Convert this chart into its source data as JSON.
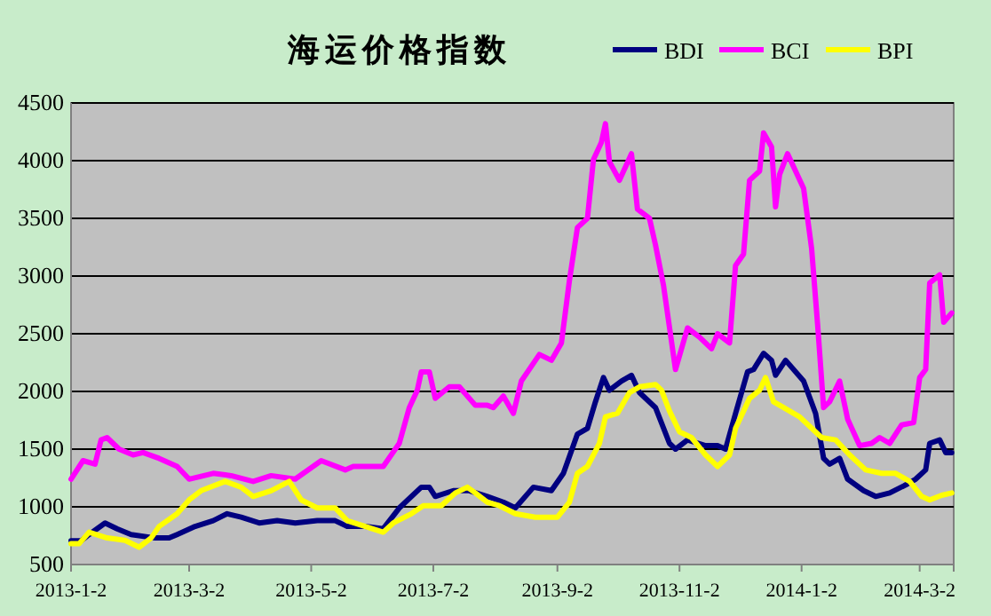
{
  "chart_data": {
    "type": "line",
    "title": "海运价格指数",
    "legend": "top right",
    "grid": "y",
    "marker": "none",
    "line_style": "solid",
    "xlim": [
      "2013-01-02",
      "2014-03-19"
    ],
    "xticks": [
      {
        "value": "2013-01-02",
        "label": "2013-1-2"
      },
      {
        "value": "2013-03-02",
        "label": "2013-3-2"
      },
      {
        "value": "2013-05-02",
        "label": "2013-5-2"
      },
      {
        "value": "2013-07-02",
        "label": "2013-7-2"
      },
      {
        "value": "2013-09-02",
        "label": "2013-9-2"
      },
      {
        "value": "2013-11-02",
        "label": "2013-11-2"
      },
      {
        "value": "2014-01-02",
        "label": "2014-1-2"
      },
      {
        "value": "2014-03-02",
        "label": "2014-3-2"
      }
    ],
    "ylim": [
      500,
      4500
    ],
    "yticks": [
      500,
      1000,
      1500,
      2000,
      2500,
      3000,
      3500,
      4000,
      4500
    ],
    "series": [
      {
        "name": "BDI",
        "color": "#000080",
        "x": [
          "2013-01-02",
          "2013-01-07",
          "2013-01-11",
          "2013-01-19",
          "2013-01-25",
          "2013-02-01",
          "2013-02-13",
          "2013-02-20",
          "2013-02-24",
          "2013-03-05",
          "2013-03-14",
          "2013-03-21",
          "2013-03-28",
          "2013-04-06",
          "2013-04-15",
          "2013-04-24",
          "2013-05-05",
          "2013-05-14",
          "2013-05-20",
          "2013-05-29",
          "2013-06-07",
          "2013-06-15",
          "2013-06-26",
          "2013-06-30",
          "2013-07-03",
          "2013-07-12",
          "2013-07-20",
          "2013-07-29",
          "2013-08-06",
          "2013-08-12",
          "2013-08-21",
          "2013-08-30",
          "2013-09-05",
          "2013-09-12",
          "2013-09-17",
          "2013-09-21",
          "2013-09-25",
          "2013-09-28",
          "2013-10-04",
          "2013-10-09",
          "2013-10-13",
          "2013-10-21",
          "2013-10-28",
          "2013-10-31",
          "2013-11-06",
          "2013-11-15",
          "2013-11-21",
          "2013-11-25",
          "2013-11-30",
          "2013-12-06",
          "2013-12-09",
          "2013-12-14",
          "2013-12-18",
          "2013-12-20",
          "2013-12-25",
          "2014-01-03",
          "2014-01-09",
          "2014-01-13",
          "2014-01-16",
          "2014-01-21",
          "2014-01-25",
          "2014-02-02",
          "2014-02-08",
          "2014-02-15",
          "2014-02-23",
          "2014-02-28",
          "2014-03-05",
          "2014-03-07",
          "2014-03-12",
          "2014-03-15",
          "2014-03-18"
        ],
        "values": [
          705,
          705,
          760,
          860,
          810,
          760,
          730,
          730,
          760,
          830,
          880,
          940,
          910,
          860,
          880,
          860,
          880,
          880,
          830,
          830,
          810,
          990,
          1170,
          1170,
          1090,
          1140,
          1140,
          1090,
          1040,
          990,
          1170,
          1140,
          1290,
          1630,
          1680,
          1910,
          2120,
          2010,
          2090,
          2140,
          1990,
          1860,
          1550,
          1500,
          1580,
          1530,
          1530,
          1500,
          1810,
          2170,
          2190,
          2330,
          2270,
          2140,
          2270,
          2090,
          1810,
          1420,
          1370,
          1420,
          1240,
          1140,
          1090,
          1120,
          1190,
          1240,
          1320,
          1550,
          1580,
          1470,
          1470
        ]
      },
      {
        "name": "BCI",
        "color": "#ff00ff",
        "x": [
          "2013-01-02",
          "2013-01-08",
          "2013-01-14",
          "2013-01-17",
          "2013-01-20",
          "2013-01-26",
          "2013-02-02",
          "2013-02-07",
          "2013-02-15",
          "2013-02-24",
          "2013-03-02",
          "2013-03-14",
          "2013-03-23",
          "2013-04-03",
          "2013-04-12",
          "2013-04-24",
          "2013-05-07",
          "2013-05-19",
          "2013-05-23",
          "2013-06-07",
          "2013-06-15",
          "2013-06-20",
          "2013-06-24",
          "2013-06-26",
          "2013-06-30",
          "2013-07-03",
          "2013-07-10",
          "2013-07-15",
          "2013-07-23",
          "2013-07-29",
          "2013-08-01",
          "2013-08-06",
          "2013-08-11",
          "2013-08-15",
          "2013-08-24",
          "2013-08-30",
          "2013-09-04",
          "2013-09-08",
          "2013-09-12",
          "2013-09-17",
          "2013-09-20",
          "2013-09-24",
          "2013-09-26",
          "2013-09-28",
          "2013-10-03",
          "2013-10-09",
          "2013-10-12",
          "2013-10-18",
          "2013-10-21",
          "2013-10-25",
          "2013-10-31",
          "2013-11-06",
          "2013-11-12",
          "2013-11-18",
          "2013-11-21",
          "2013-11-27",
          "2013-11-30",
          "2013-12-04",
          "2013-12-07",
          "2013-12-12",
          "2013-12-14",
          "2013-12-18",
          "2013-12-20",
          "2013-12-22",
          "2013-12-26",
          "2014-01-03",
          "2014-01-07",
          "2014-01-10",
          "2014-01-13",
          "2014-01-16",
          "2014-01-21",
          "2014-01-25",
          "2014-01-31",
          "2014-02-06",
          "2014-02-10",
          "2014-02-15",
          "2014-02-21",
          "2014-02-27",
          "2014-03-02",
          "2014-03-05",
          "2014-03-07",
          "2014-03-12",
          "2014-03-14",
          "2014-03-18"
        ],
        "values": [
          1240,
          1400,
          1370,
          1580,
          1600,
          1500,
          1450,
          1470,
          1420,
          1350,
          1240,
          1290,
          1270,
          1220,
          1270,
          1240,
          1400,
          1320,
          1350,
          1350,
          1550,
          1860,
          2010,
          2170,
          2170,
          1940,
          2040,
          2040,
          1880,
          1880,
          1860,
          1960,
          1810,
          2090,
          2320,
          2270,
          2420,
          2960,
          3420,
          3500,
          4010,
          4160,
          4320,
          3990,
          3830,
          4060,
          3580,
          3500,
          3270,
          2920,
          2190,
          2550,
          2470,
          2370,
          2500,
          2420,
          3090,
          3190,
          3830,
          3910,
          4240,
          4120,
          3600,
          3880,
          4060,
          3760,
          3240,
          2580,
          1860,
          1910,
          2090,
          1760,
          1530,
          1550,
          1600,
          1550,
          1710,
          1730,
          2120,
          2190,
          2940,
          3010,
          2600,
          2680
        ]
      },
      {
        "name": "BPI",
        "color": "#ffff00",
        "x": [
          "2013-01-02",
          "2013-01-06",
          "2013-01-11",
          "2013-01-20",
          "2013-01-29",
          "2013-02-05",
          "2013-02-11",
          "2013-02-15",
          "2013-02-24",
          "2013-03-02",
          "2013-03-08",
          "2013-03-20",
          "2013-03-28",
          "2013-04-03",
          "2013-04-12",
          "2013-04-21",
          "2013-04-27",
          "2013-05-05",
          "2013-05-14",
          "2013-05-20",
          "2013-05-29",
          "2013-06-07",
          "2013-06-12",
          "2013-06-21",
          "2013-06-27",
          "2013-07-06",
          "2013-07-13",
          "2013-07-19",
          "2013-07-23",
          "2013-07-29",
          "2013-08-04",
          "2013-08-12",
          "2013-08-22",
          "2013-09-02",
          "2013-09-08",
          "2013-09-12",
          "2013-09-17",
          "2013-09-23",
          "2013-09-26",
          "2013-10-02",
          "2013-10-08",
          "2013-10-13",
          "2013-10-21",
          "2013-10-24",
          "2013-10-28",
          "2013-11-02",
          "2013-11-08",
          "2013-11-15",
          "2013-11-21",
          "2013-11-27",
          "2013-11-30",
          "2013-12-07",
          "2013-12-12",
          "2013-12-15",
          "2013-12-19",
          "2013-12-24",
          "2014-01-01",
          "2014-01-12",
          "2014-01-19",
          "2014-01-26",
          "2014-02-03",
          "2014-02-11",
          "2014-02-18",
          "2014-02-25",
          "2014-03-03",
          "2014-03-07",
          "2014-03-13",
          "2014-03-18"
        ],
        "values": [
          680,
          680,
          780,
          730,
          710,
          650,
          730,
          830,
          940,
          1060,
          1140,
          1220,
          1170,
          1090,
          1140,
          1220,
          1060,
          990,
          990,
          880,
          830,
          780,
          860,
          940,
          1010,
          1010,
          1120,
          1170,
          1120,
          1040,
          1010,
          940,
          910,
          910,
          1040,
          1290,
          1350,
          1550,
          1780,
          1810,
          1990,
          2040,
          2060,
          2010,
          1830,
          1650,
          1600,
          1450,
          1350,
          1450,
          1680,
          1940,
          2010,
          2120,
          1910,
          1860,
          1780,
          1600,
          1580,
          1450,
          1320,
          1290,
          1290,
          1220,
          1090,
          1060,
          1100,
          1120
        ]
      }
    ]
  }
}
